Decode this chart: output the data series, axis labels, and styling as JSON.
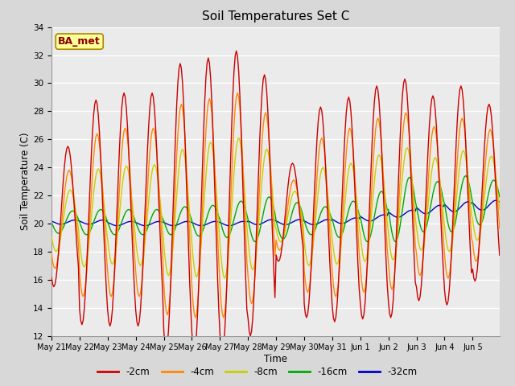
{
  "title": "Soil Temperatures Set C",
  "xlabel": "Time",
  "ylabel": "Soil Temperature (C)",
  "ylim": [
    12,
    34
  ],
  "yticks": [
    12,
    14,
    16,
    18,
    20,
    22,
    24,
    26,
    28,
    30,
    32,
    34
  ],
  "annotation_text": "BA_met",
  "bg_color": "#d8d8d8",
  "plot_bg_color": "#ebebeb",
  "series_colors": [
    "#cc0000",
    "#ff8800",
    "#cccc00",
    "#00aa00",
    "#0000cc"
  ],
  "series_labels": [
    "-2cm",
    "-4cm",
    "-8cm",
    "-16cm",
    "-32cm"
  ],
  "dates": [
    "May 21",
    "May 22",
    "May 23",
    "May 24",
    "May 25",
    "May 26",
    "May 27",
    "May 28",
    "May 29",
    "May 30",
    "May 31",
    "Jun 1",
    "Jun 2",
    "Jun 3",
    "Jun 4",
    "Jun 5"
  ],
  "n_days": 16
}
